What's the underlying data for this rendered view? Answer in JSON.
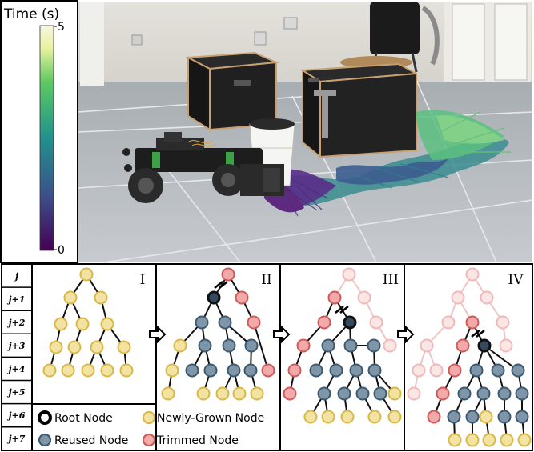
{
  "colorbar": {
    "title": "Time (s)",
    "max_label": "5",
    "min_label": "0",
    "gradient": [
      "#440154",
      "#3b528b",
      "#21918c",
      "#5ec962",
      "#fde725",
      "#f7f7df"
    ]
  },
  "row_labels": [
    "j",
    "j+1",
    "j+2",
    "j+3",
    "j+4",
    "j+5",
    "j+6",
    "j+7"
  ],
  "panels": [
    "I",
    "II",
    "III",
    "IV"
  ],
  "legend": {
    "root": "Root Node",
    "new": "Newly-Grown Node",
    "reused": "Reused Node",
    "trimmed": "Trimmed Node"
  },
  "node_colors": {
    "new_fill": "#f3e3a2",
    "new_stroke": "#d9b84a",
    "reused_fill": "#7f96a8",
    "reused_stroke": "#3d5a72",
    "trimmed_fill": "#f2a9a9",
    "trimmed_stroke": "#cf5a5a",
    "faded_fill": "#fbe6e6",
    "faded_stroke": "#f0b8b8",
    "root_fill": "#34495e",
    "root_stroke": "#111111"
  }
}
